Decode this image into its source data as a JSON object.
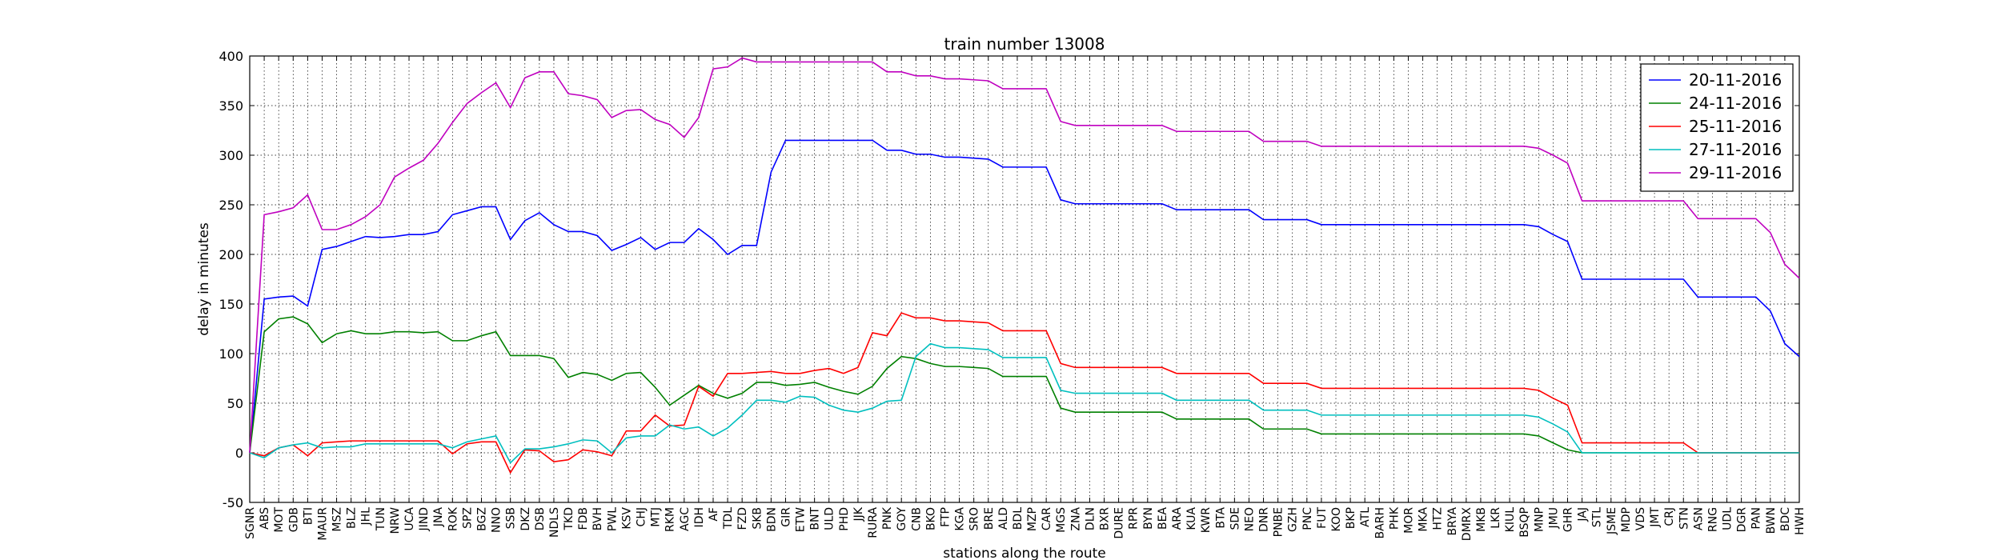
{
  "chart_data": {
    "type": "line",
    "title": "train number 13008",
    "xlabel": "stations along the route",
    "ylabel": "delay in minutes",
    "categories": [
      "SGNR",
      "ABS",
      "MOT",
      "GDB",
      "BTI",
      "MAUR",
      "MSZ",
      "BLZ",
      "JHL",
      "TUN",
      "NRW",
      "UCA",
      "JIND",
      "JNA",
      "ROK",
      "SPZ",
      "BGZ",
      "NNO",
      "SSB",
      "DKZ",
      "DSB",
      "NDLS",
      "TKD",
      "FDB",
      "BVH",
      "PWL",
      "KSV",
      "CHJ",
      "MTJ",
      "RKM",
      "AGC",
      "IDH",
      "AF",
      "TDL",
      "FZD",
      "SKB",
      "BDN",
      "GIR",
      "ETW",
      "BNT",
      "ULD",
      "PHD",
      "JJK",
      "RURA",
      "PNK",
      "GOY",
      "CNB",
      "BKO",
      "FTP",
      "KGA",
      "SRO",
      "BRE",
      "ALD",
      "BDL",
      "MZP",
      "CAR",
      "MGS",
      "ZNA",
      "DLN",
      "BXR",
      "DURE",
      "RPR",
      "BYN",
      "BEA",
      "ARA",
      "KUA",
      "KWR",
      "BTA",
      "SDE",
      "NEO",
      "DNR",
      "PNBE",
      "GZH",
      "PNC",
      "FUT",
      "KOO",
      "BKP",
      "ATL",
      "BARH",
      "PHK",
      "MOR",
      "MKA",
      "HTZ",
      "BRYA",
      "DMRX",
      "MKB",
      "LKR",
      "KIUL",
      "BSQP",
      "MNP",
      "JMU",
      "GHR",
      "JAJ",
      "STL",
      "JSME",
      "MDP",
      "VDS",
      "JMT",
      "CRJ",
      "STN",
      "ASN",
      "RNG",
      "UDL",
      "DGR",
      "PAN",
      "BWN",
      "BDC",
      "HWH"
    ],
    "series": [
      {
        "name": "20-11-2016",
        "color": "#0000ff",
        "values": [
          0,
          155,
          157,
          158,
          148,
          205,
          208,
          213,
          218,
          217,
          218,
          220,
          220,
          223,
          240,
          244,
          248,
          248,
          215,
          234,
          242,
          230,
          223,
          223,
          219,
          204,
          210,
          217,
          205,
          212,
          212,
          226,
          215,
          200,
          209,
          209,
          283,
          315,
          315,
          315,
          315,
          315,
          315,
          315,
          305,
          305,
          301,
          301,
          298,
          298,
          297,
          296,
          288,
          288,
          288,
          288,
          255,
          251,
          251,
          251,
          251,
          251,
          251,
          251,
          245,
          245,
          245,
          245,
          245,
          245,
          235,
          235,
          235,
          235,
          230,
          230,
          230,
          230,
          230,
          230,
          230,
          230,
          230,
          230,
          230,
          230,
          230,
          230,
          230,
          228,
          220,
          213,
          175,
          175,
          175,
          175,
          175,
          175,
          175,
          175,
          157,
          157,
          157,
          157,
          157,
          143,
          110,
          97
        ]
      },
      {
        "name": "24-11-2016",
        "color": "#008000",
        "values": [
          0,
          122,
          135,
          137,
          130,
          111,
          120,
          123,
          120,
          120,
          122,
          122,
          121,
          122,
          113,
          113,
          118,
          122,
          98,
          98,
          98,
          95,
          76,
          81,
          79,
          73,
          80,
          81,
          66,
          48,
          58,
          68,
          60,
          55,
          60,
          71,
          71,
          68,
          69,
          71,
          66,
          62,
          59,
          67,
          85,
          97,
          95,
          90,
          87,
          87,
          86,
          85,
          77,
          77,
          77,
          77,
          45,
          41,
          41,
          41,
          41,
          41,
          41,
          41,
          34,
          34,
          34,
          34,
          34,
          34,
          24,
          24,
          24,
          24,
          19,
          19,
          19,
          19,
          19,
          19,
          19,
          19,
          19,
          19,
          19,
          19,
          19,
          19,
          19,
          17,
          10,
          3,
          0,
          0,
          0,
          0,
          0,
          0,
          0,
          0,
          0,
          0,
          0,
          0,
          0,
          0,
          0,
          0
        ]
      },
      {
        "name": "25-11-2016",
        "color": "#ff0000",
        "values": [
          0,
          -3,
          5,
          8,
          -3,
          10,
          11,
          12,
          12,
          12,
          12,
          12,
          12,
          12,
          -1,
          9,
          11,
          11,
          -20,
          3,
          2,
          -9,
          -7,
          3,
          1,
          -3,
          22,
          22,
          38,
          27,
          28,
          67,
          57,
          80,
          80,
          81,
          82,
          80,
          80,
          83,
          85,
          80,
          86,
          121,
          118,
          141,
          136,
          136,
          133,
          133,
          132,
          131,
          123,
          123,
          123,
          123,
          90,
          86,
          86,
          86,
          86,
          86,
          86,
          86,
          80,
          80,
          80,
          80,
          80,
          80,
          70,
          70,
          70,
          70,
          65,
          65,
          65,
          65,
          65,
          65,
          65,
          65,
          65,
          65,
          65,
          65,
          65,
          65,
          65,
          63,
          55,
          48,
          10,
          10,
          10,
          10,
          10,
          10,
          10,
          10,
          0,
          0,
          0,
          0,
          0,
          0,
          0,
          0
        ]
      },
      {
        "name": "27-11-2016",
        "color": "#00bfbf",
        "values": [
          0,
          -5,
          5,
          8,
          10,
          5,
          6,
          6,
          9,
          9,
          9,
          9,
          9,
          9,
          5,
          11,
          14,
          17,
          -10,
          4,
          4,
          6,
          9,
          13,
          12,
          0,
          15,
          17,
          17,
          28,
          24,
          26,
          17,
          25,
          38,
          53,
          53,
          51,
          57,
          56,
          48,
          43,
          41,
          45,
          52,
          53,
          97,
          110,
          106,
          106,
          105,
          104,
          96,
          96,
          96,
          96,
          63,
          60,
          60,
          60,
          60,
          60,
          60,
          60,
          53,
          53,
          53,
          53,
          53,
          53,
          43,
          43,
          43,
          43,
          38,
          38,
          38,
          38,
          38,
          38,
          38,
          38,
          38,
          38,
          38,
          38,
          38,
          38,
          38,
          36,
          29,
          21,
          0,
          0,
          0,
          0,
          0,
          0,
          0,
          0,
          0,
          0,
          0,
          0,
          0,
          0,
          0,
          0
        ]
      },
      {
        "name": "29-11-2016",
        "color": "#bf00bf",
        "values": [
          0,
          240,
          243,
          247,
          260,
          225,
          225,
          230,
          238,
          250,
          278,
          287,
          295,
          312,
          333,
          352,
          363,
          373,
          348,
          378,
          384,
          384,
          362,
          360,
          356,
          338,
          345,
          346,
          336,
          331,
          318,
          338,
          387,
          389,
          398,
          394,
          394,
          394,
          394,
          394,
          394,
          394,
          394,
          394,
          384,
          384,
          380,
          380,
          377,
          377,
          376,
          375,
          367,
          367,
          367,
          367,
          334,
          330,
          330,
          330,
          330,
          330,
          330,
          330,
          324,
          324,
          324,
          324,
          324,
          324,
          314,
          314,
          314,
          314,
          309,
          309,
          309,
          309,
          309,
          309,
          309,
          309,
          309,
          309,
          309,
          309,
          309,
          309,
          309,
          307,
          300,
          292,
          254,
          254,
          254,
          254,
          254,
          254,
          254,
          254,
          236,
          236,
          236,
          236,
          236,
          222,
          190,
          176
        ]
      }
    ],
    "ylim": [
      -50,
      400
    ],
    "yticks": [
      -50,
      0,
      50,
      100,
      150,
      200,
      250,
      300,
      350,
      400
    ],
    "grid": true,
    "legend": "upper right"
  }
}
